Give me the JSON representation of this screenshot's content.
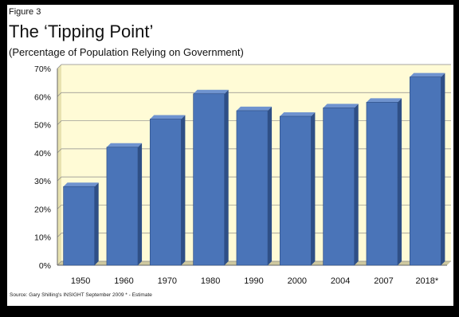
{
  "figure_label": "Figure 3",
  "title": "The ‘Tipping Point’",
  "subtitle": "(Percentage of Population Relying on Government)",
  "source": "Source: Gary Shilling's INSIGHT September 2009 * - Estimate",
  "colors": {
    "bar": "#4a74b8",
    "bar_dark": "#2e4f86",
    "plot_bg": "#fffbd6",
    "wall": "#e8e2b0",
    "grid": "#8a8a8a"
  },
  "chart_data": {
    "type": "bar",
    "categories": [
      "1950",
      "1960",
      "1970",
      "1980",
      "1990",
      "2000",
      "2004",
      "2007",
      "2018*"
    ],
    "values": [
      28,
      42,
      52,
      61,
      55,
      53,
      56,
      58,
      67
    ],
    "xlabel": "",
    "ylabel": "",
    "ylim": [
      0,
      70
    ],
    "yticks": [
      0,
      10,
      20,
      30,
      40,
      50,
      60,
      70
    ],
    "ytick_labels": [
      "0%",
      "10%",
      "20%",
      "30%",
      "40%",
      "50%",
      "60%",
      "70%"
    ],
    "grid": true,
    "legend": "none"
  }
}
